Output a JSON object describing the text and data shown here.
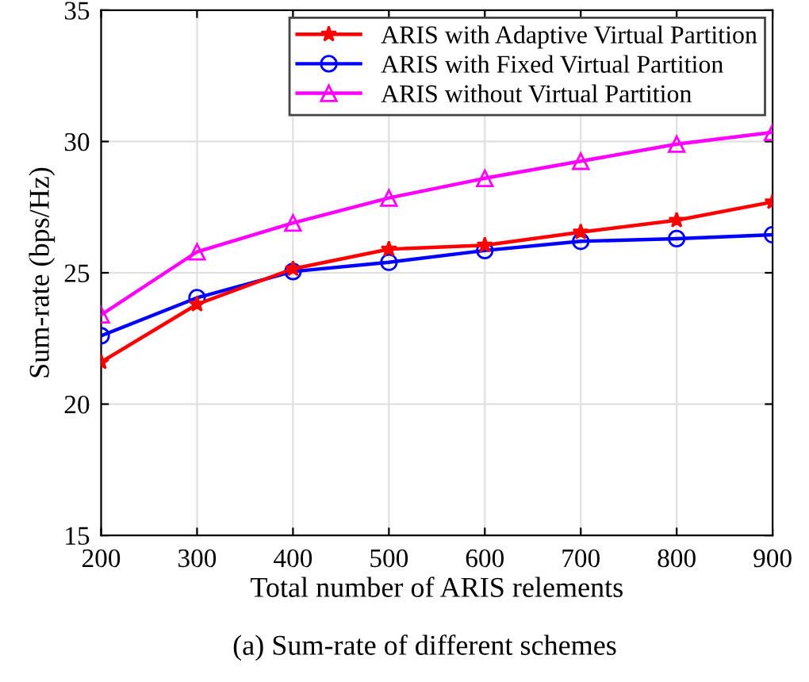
{
  "chart_data": {
    "type": "line",
    "xlabel": "Total number of ARIS relements",
    "ylabel": "Sum-rate (bps/Hz)",
    "x": [
      200,
      300,
      400,
      500,
      600,
      700,
      800,
      900
    ],
    "series": [
      {
        "name": "ARIS with Adaptive Virtual Partition",
        "color": "#ff0000",
        "marker": "star",
        "values": [
          21.6,
          23.8,
          25.15,
          25.9,
          26.05,
          26.55,
          27.0,
          27.7
        ]
      },
      {
        "name": "ARIS with Fixed Virtual Partition",
        "color": "#0000ff",
        "marker": "circle",
        "values": [
          22.6,
          24.05,
          25.05,
          25.4,
          25.85,
          26.2,
          26.3,
          26.45
        ]
      },
      {
        "name": "ARIS without Virtual Partition",
        "color": "#ff00ff",
        "marker": "triangle",
        "values": [
          23.4,
          25.8,
          26.9,
          27.85,
          28.6,
          29.25,
          29.9,
          30.35
        ]
      }
    ],
    "xlim": [
      200,
      900
    ],
    "xticks": [
      200,
      300,
      400,
      500,
      600,
      700,
      800,
      900
    ],
    "ylim": [
      15,
      35
    ],
    "yticks": [
      15,
      20,
      25,
      30,
      35
    ],
    "grid": true,
    "legend": "top right",
    "line_style": "solid",
    "annotations": [
      "(a) Sum-rate of different schemes"
    ]
  }
}
